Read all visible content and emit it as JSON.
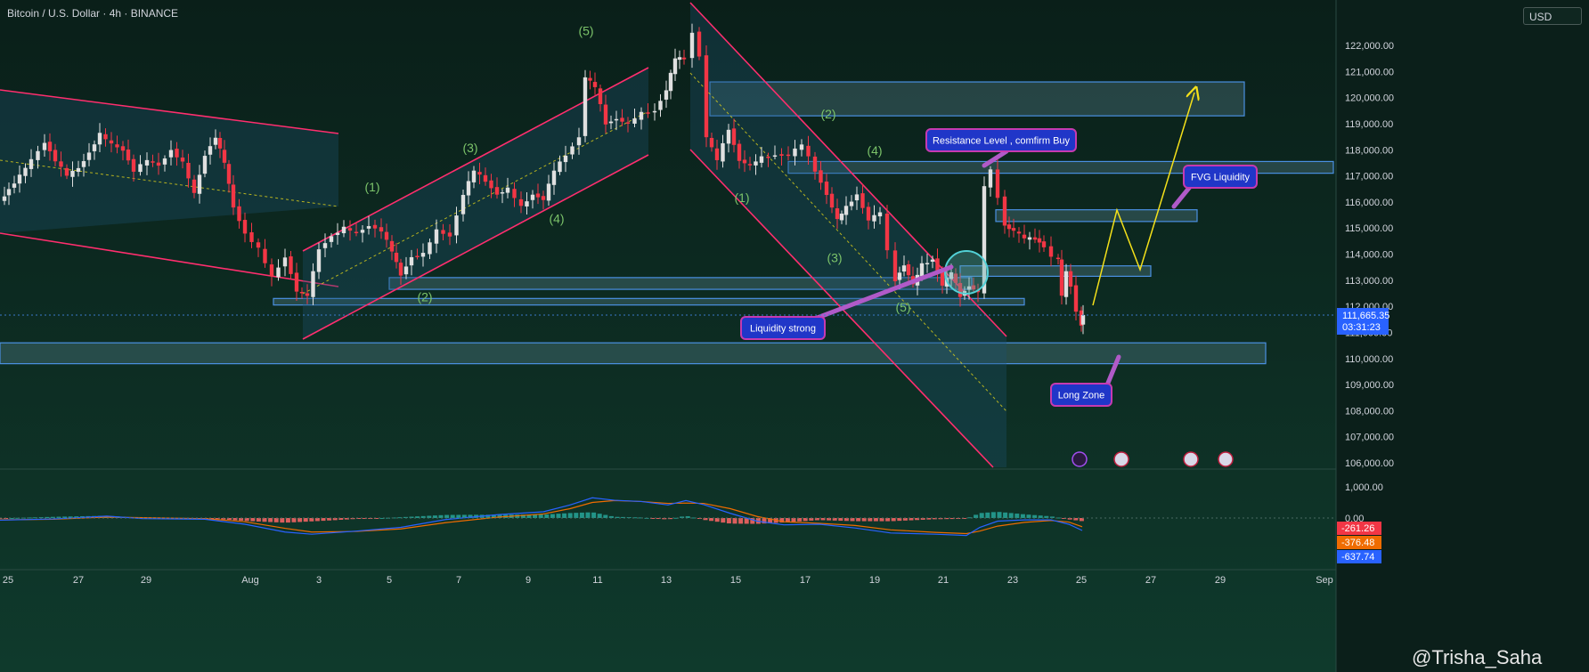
{
  "header": {
    "title": "Bitcoin / U.S. Dollar · 4h · BINANCE",
    "currency": "USD"
  },
  "watermark": "@Trisha_Saha",
  "colors": {
    "background": "#0c2a22",
    "up": "#e0e0e0",
    "down": "#f23645",
    "channel": "#ff2e6e",
    "zone": "#4a90e2",
    "arrow": "#f5e11a",
    "wave_label": "#7cc46a",
    "callout": "#2036c8"
  },
  "chart_data": [
    {
      "type": "candlestick",
      "title": "Bitcoin / U.S. Dollar · 4h · BINANCE",
      "y_ticks": [
        "122,000.00",
        "121,000.00",
        "120,000.00",
        "119,000.00",
        "118,000.00",
        "117,000.00",
        "116,000.00",
        "115,000.00",
        "114,000.00",
        "113,000.00",
        "112,000.00",
        "111,000.00",
        "110,000.00",
        "109,000.00",
        "108,000.00",
        "107,000.00",
        "106,000.00"
      ],
      "ylim": [
        105800,
        122900
      ],
      "x_ticks": [
        "25",
        "27",
        "29",
        "Aug",
        "3",
        "5",
        "7",
        "9",
        "11",
        "13",
        "15",
        "17",
        "19",
        "21",
        "23",
        "25",
        "27",
        "29",
        "Sep"
      ],
      "last_price": "111,665.35",
      "countdown": "03:31:23",
      "anchors": [
        [
          0,
          116000
        ],
        [
          10,
          116500
        ],
        [
          22,
          117000
        ],
        [
          35,
          117600
        ],
        [
          50,
          118300
        ],
        [
          62,
          117600
        ],
        [
          75,
          117000
        ],
        [
          88,
          117300
        ],
        [
          100,
          117900
        ],
        [
          112,
          118600
        ],
        [
          125,
          118200
        ],
        [
          138,
          118000
        ],
        [
          150,
          117200
        ],
        [
          165,
          117600
        ],
        [
          178,
          117400
        ],
        [
          192,
          118000
        ],
        [
          205,
          117500
        ],
        [
          218,
          116300
        ],
        [
          230,
          117800
        ],
        [
          242,
          118500
        ],
        [
          252,
          117500
        ],
        [
          262,
          115800
        ],
        [
          275,
          114800
        ],
        [
          290,
          114200
        ],
        [
          305,
          113100
        ],
        [
          320,
          113900
        ],
        [
          333,
          112600
        ],
        [
          345,
          112400
        ],
        [
          358,
          114200
        ],
        [
          372,
          114700
        ],
        [
          386,
          115000
        ],
        [
          400,
          114800
        ],
        [
          414,
          115100
        ],
        [
          428,
          114900
        ],
        [
          440,
          114100
        ],
        [
          450,
          113200
        ],
        [
          462,
          113900
        ],
        [
          475,
          114000
        ],
        [
          490,
          114900
        ],
        [
          505,
          114700
        ],
        [
          520,
          116300
        ],
        [
          532,
          117200
        ],
        [
          545,
          116800
        ],
        [
          558,
          116300
        ],
        [
          570,
          116500
        ],
        [
          585,
          115800
        ],
        [
          598,
          116300
        ],
        [
          610,
          116100
        ],
        [
          622,
          117200
        ],
        [
          635,
          117800
        ],
        [
          650,
          118500
        ],
        [
          657,
          120800
        ],
        [
          668,
          120400
        ],
        [
          680,
          119000
        ],
        [
          692,
          119200
        ],
        [
          705,
          119000
        ],
        [
          720,
          119400
        ],
        [
          735,
          119500
        ],
        [
          748,
          120300
        ],
        [
          758,
          121500
        ],
        [
          768,
          121500
        ],
        [
          777,
          122500
        ],
        [
          785,
          121600
        ],
        [
          793,
          118500
        ],
        [
          805,
          117600
        ],
        [
          818,
          118800
        ],
        [
          830,
          117600
        ],
        [
          842,
          117400
        ],
        [
          855,
          117700
        ],
        [
          870,
          117800
        ],
        [
          885,
          117800
        ],
        [
          900,
          118200
        ],
        [
          915,
          117200
        ],
        [
          928,
          116300
        ],
        [
          940,
          115300
        ],
        [
          950,
          115800
        ],
        [
          962,
          116300
        ],
        [
          975,
          115300
        ],
        [
          988,
          115600
        ],
        [
          996,
          114100
        ],
        [
          1005,
          113000
        ],
        [
          1015,
          113600
        ],
        [
          1025,
          112800
        ],
        [
          1035,
          113600
        ],
        [
          1047,
          113800
        ],
        [
          1058,
          112800
        ],
        [
          1068,
          113300
        ],
        [
          1078,
          112400
        ],
        [
          1088,
          112800
        ],
        [
          1098,
          112500
        ],
        [
          1105,
          116600
        ],
        [
          1112,
          117200
        ],
        [
          1120,
          116200
        ],
        [
          1128,
          115100
        ],
        [
          1138,
          114900
        ],
        [
          1150,
          114600
        ],
        [
          1162,
          114600
        ],
        [
          1172,
          114300
        ],
        [
          1180,
          113900
        ],
        [
          1188,
          113800
        ],
        [
          1192,
          112400
        ],
        [
          1197,
          113300
        ],
        [
          1202,
          112800
        ],
        [
          1208,
          111800
        ],
        [
          1214,
          111300
        ],
        [
          1216,
          111665
        ]
      ],
      "annotations": [
        {
          "text": "(1)",
          "x": 418,
          "price": 116400
        },
        {
          "text": "(2)",
          "x": 477,
          "price": 112200
        },
        {
          "text": "(3)",
          "x": 528,
          "price": 117900
        },
        {
          "text": "(4)",
          "x": 625,
          "price": 115200
        },
        {
          "text": "(5)",
          "x": 658,
          "price": 122400
        },
        {
          "text": "(1)",
          "x": 833,
          "price": 116000
        },
        {
          "text": "(2)",
          "x": 930,
          "price": 119200
        },
        {
          "text": "(3)",
          "x": 937,
          "price": 113700
        },
        {
          "text": "(4)",
          "x": 982,
          "price": 117800
        },
        {
          "text": "(5)",
          "x": 1014,
          "price": 111800
        }
      ],
      "callouts": {
        "resistance": "Resistance Level , comfirm Buy",
        "fvg": "FVG Liquidity",
        "liquidity": "Liquidity strong",
        "long_zone": "Long Zone"
      }
    },
    {
      "type": "macd",
      "y_ticks": [
        "1,000.00",
        "0.00"
      ],
      "ylim": [
        -1000,
        1200
      ],
      "values_readout": [
        "-261.26",
        "-376.48",
        "-637.74"
      ],
      "readout_colors": [
        "#f23645",
        "#ef6c00",
        "#2962ff"
      ],
      "macd_line": [
        [
          0,
          -70
        ],
        [
          60,
          -30
        ],
        [
          120,
          60
        ],
        [
          160,
          -20
        ],
        [
          230,
          -40
        ],
        [
          275,
          -200
        ],
        [
          320,
          -450
        ],
        [
          350,
          -520
        ],
        [
          400,
          -420
        ],
        [
          450,
          -300
        ],
        [
          500,
          -50
        ],
        [
          560,
          110
        ],
        [
          610,
          200
        ],
        [
          640,
          420
        ],
        [
          665,
          650
        ],
        [
          690,
          570
        ],
        [
          720,
          530
        ],
        [
          750,
          420
        ],
        [
          770,
          560
        ],
        [
          790,
          430
        ],
        [
          820,
          150
        ],
        [
          850,
          -100
        ],
        [
          880,
          -220
        ],
        [
          920,
          -200
        ],
        [
          960,
          -320
        ],
        [
          1000,
          -480
        ],
        [
          1050,
          -520
        ],
        [
          1085,
          -560
        ],
        [
          1100,
          -300
        ],
        [
          1120,
          -100
        ],
        [
          1150,
          -60
        ],
        [
          1180,
          -60
        ],
        [
          1200,
          -200
        ],
        [
          1215,
          -400
        ]
      ],
      "signal_line": [
        [
          0,
          -60
        ],
        [
          60,
          -40
        ],
        [
          120,
          30
        ],
        [
          160,
          10
        ],
        [
          230,
          -20
        ],
        [
          275,
          -120
        ],
        [
          320,
          -330
        ],
        [
          350,
          -450
        ],
        [
          400,
          -430
        ],
        [
          450,
          -350
        ],
        [
          500,
          -150
        ],
        [
          560,
          30
        ],
        [
          610,
          130
        ],
        [
          640,
          300
        ],
        [
          665,
          500
        ],
        [
          690,
          560
        ],
        [
          720,
          530
        ],
        [
          750,
          470
        ],
        [
          770,
          480
        ],
        [
          790,
          470
        ],
        [
          820,
          300
        ],
        [
          850,
          50
        ],
        [
          880,
          -120
        ],
        [
          920,
          -170
        ],
        [
          960,
          -240
        ],
        [
          1000,
          -380
        ],
        [
          1050,
          -460
        ],
        [
          1085,
          -500
        ],
        [
          1100,
          -420
        ],
        [
          1120,
          -260
        ],
        [
          1150,
          -140
        ],
        [
          1180,
          -80
        ],
        [
          1200,
          -130
        ],
        [
          1215,
          -280
        ]
      ]
    }
  ]
}
